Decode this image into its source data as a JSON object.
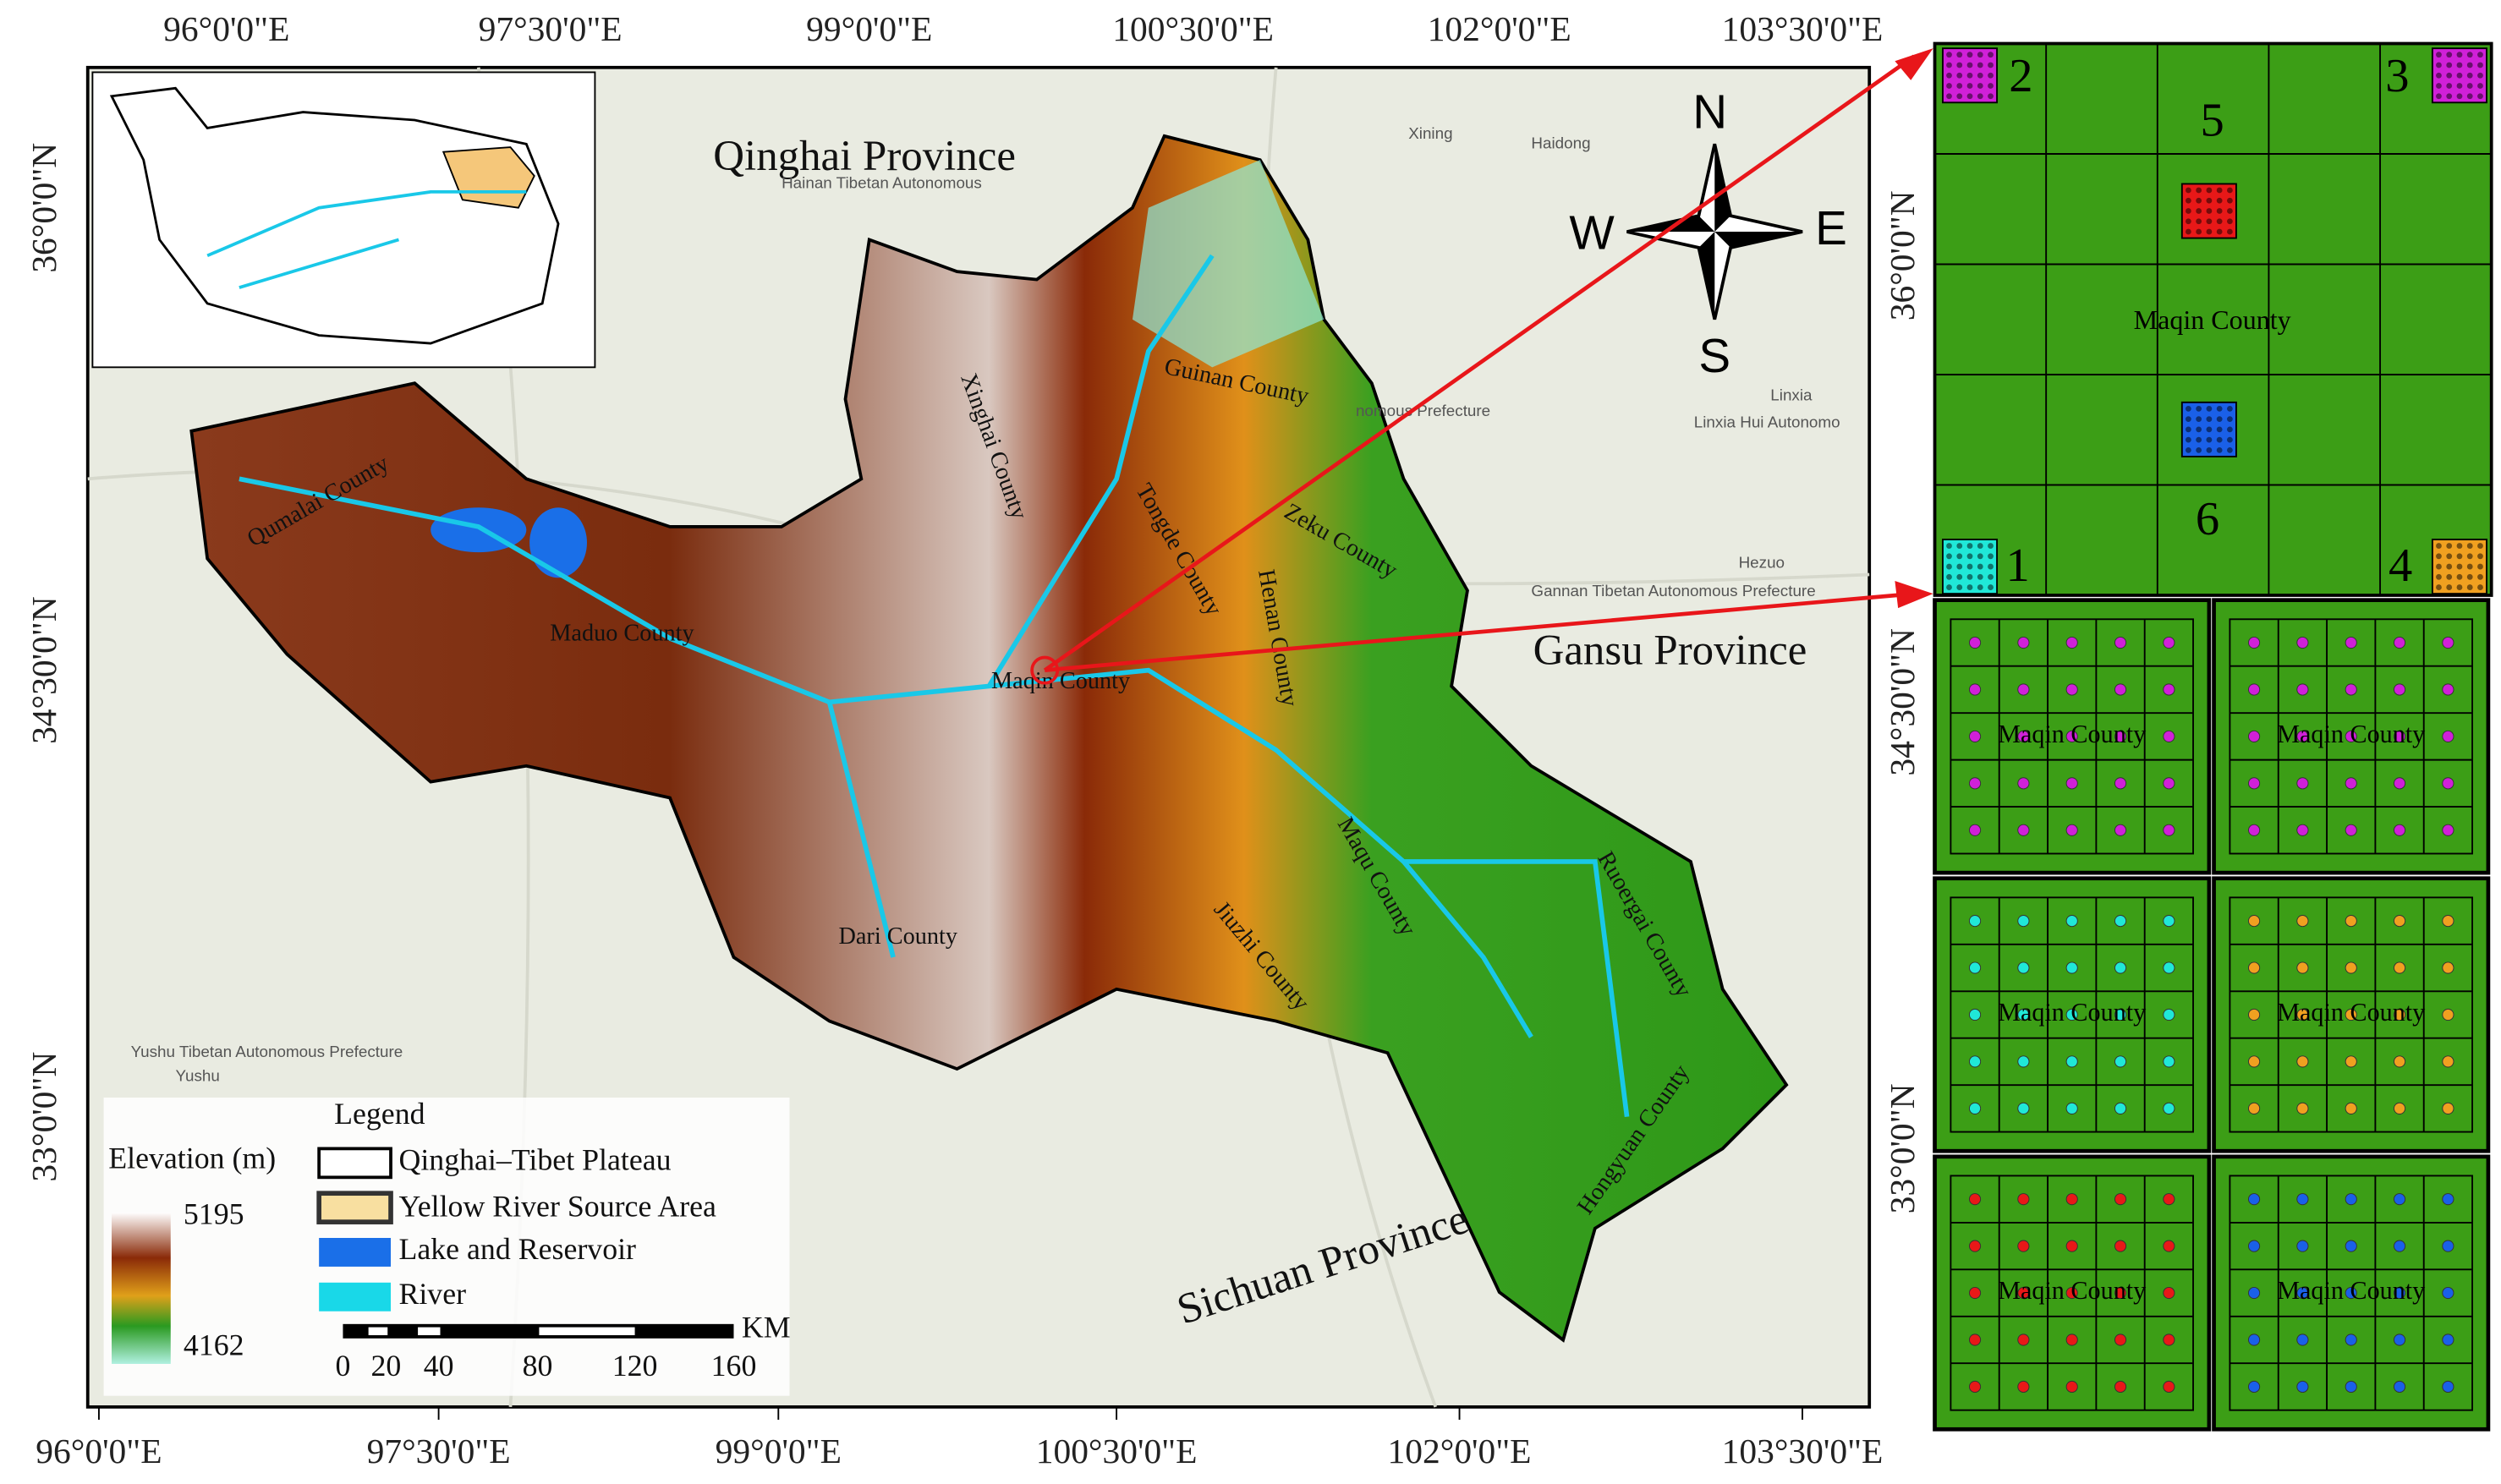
{
  "axes": {
    "top": [
      "96°0'0\"E",
      "97°30'0\"E",
      "99°0'0\"E",
      "100°30'0\"E",
      "102°0'0\"E",
      "103°30'0\"E"
    ],
    "bottom": [
      "96°0'0\"E",
      "97°30'0\"E",
      "99°0'0\"E",
      "100°30'0\"E",
      "102°0'0\"E",
      "103°30'0\"E"
    ],
    "left": [
      "36°0'0\"N",
      "34°30'0\"N",
      "33°0'0\"N"
    ],
    "right": [
      "36°0'0\"N",
      "34°30'0\"N",
      "33°0'0\"N"
    ]
  },
  "provinces": [
    "Qinghai Province",
    "Gansu Province",
    "Sichuan Province"
  ],
  "counties": [
    "Qumalai County",
    "Maduo County",
    "Dari County",
    "Maqin County",
    "Guinan County",
    "Tongde County",
    "Xinghai County",
    "Zeku County",
    "Henan County",
    "Maqu County",
    "Jiuzhi County",
    "Ruoergai County",
    "Hongyuan County"
  ],
  "basemap_labels": [
    "Xining",
    "Haidong",
    "Hainan Tibetan Autonomous",
    "nomous Prefecture",
    "Linxia",
    "Linxia Hui Autonomo",
    "Hezuo",
    "Gannan Tibetan Autonomous Prefecture",
    "Yushu Tibetan Autonomous Prefecture",
    "Yushu"
  ],
  "compass": {
    "n": "N",
    "s": "S",
    "w": "W",
    "e": "E"
  },
  "legend": {
    "title": "Legend",
    "elevation_title": "Elevation (m)",
    "elevation_max": "5195",
    "elevation_min": "4162",
    "items": [
      "Qinghai–Tibet Plateau",
      "Yellow River Source Area",
      "Lake and Reservoir",
      "River"
    ]
  },
  "scale_bar": {
    "unit": "KM",
    "ticks": [
      "0",
      "20",
      "40",
      "80",
      "120",
      "160"
    ]
  },
  "detail_panel": {
    "numbers": [
      "1",
      "2",
      "3",
      "4",
      "5",
      "6"
    ],
    "label": "Maqin County"
  },
  "sample_panels": [
    "Maqin County",
    "Maqin County",
    "Maqin County",
    "Maqin County",
    "Maqin County",
    "Maqin County"
  ]
}
